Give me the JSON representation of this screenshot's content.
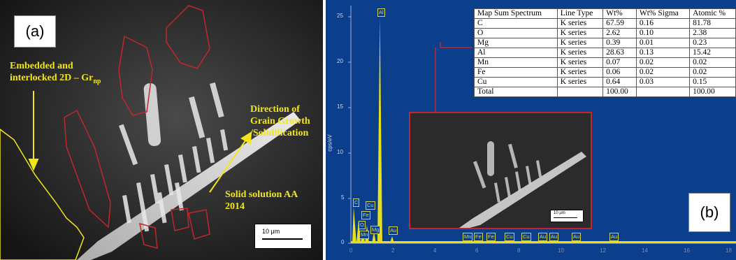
{
  "panel_a": {
    "label": "(a)",
    "annotations": {
      "embedded_line1": "Embedded and",
      "embedded_line2": "interlocked 2D – Gr",
      "embedded_sub": "np",
      "direction_line1": "Direction of",
      "direction_line2": "Grain Growth",
      "direction_line3": "/Solidification",
      "solid_line1": "Solid solution AA",
      "solid_line2": "2014"
    },
    "scale_bar": "10 μm",
    "colors": {
      "annotation": "#f2e61a",
      "outline": "#c1272d"
    }
  },
  "panel_b": {
    "label": "(b)",
    "y_axis_label": "cps/eV",
    "y_ticks": [
      "25",
      "20",
      "15",
      "10",
      "5",
      "0"
    ],
    "x_ticks": [
      "2",
      "4",
      "6",
      "8",
      "10",
      "12",
      "14",
      "16",
      "18"
    ],
    "x_tick_zero": "0",
    "peak_labels": {
      "al": "Al",
      "c": "C",
      "fe": "Fe",
      "cu": "Cu",
      "o": "O",
      "mn": "Mn",
      "mg": "Mg",
      "au": "Au",
      "row": [
        "Mn",
        "Fe",
        "Fe",
        "Cu",
        "Cu",
        "Au",
        "Au",
        "Au",
        "Au"
      ]
    },
    "inset_scale": "10 μm",
    "table": {
      "headers": [
        "Map Sum Spectrum",
        "Line Type",
        "Wt%",
        "Wt% Sigma",
        "Atomic %"
      ],
      "rows": [
        [
          "C",
          "K series",
          "67.59",
          "0.16",
          "81.78"
        ],
        [
          "O",
          "K series",
          "2.62",
          "0.10",
          "2.38"
        ],
        [
          "Mg",
          "K series",
          "0.39",
          "0.01",
          "0.23"
        ],
        [
          "Al",
          "K series",
          "28.63",
          "0.13",
          "15.42"
        ],
        [
          "Mn",
          "K series",
          "0.07",
          "0.02",
          "0.02"
        ],
        [
          "Fe",
          "K series",
          "0.06",
          "0.02",
          "0.02"
        ],
        [
          "Cu",
          "K series",
          "0.64",
          "0.03",
          "0.15"
        ],
        [
          "Total",
          "",
          "100.00",
          "",
          "100.00"
        ]
      ]
    },
    "colors": {
      "background": "#0b3f8c",
      "spectrum": "#e8df1c",
      "connector": "#c1272d"
    }
  }
}
